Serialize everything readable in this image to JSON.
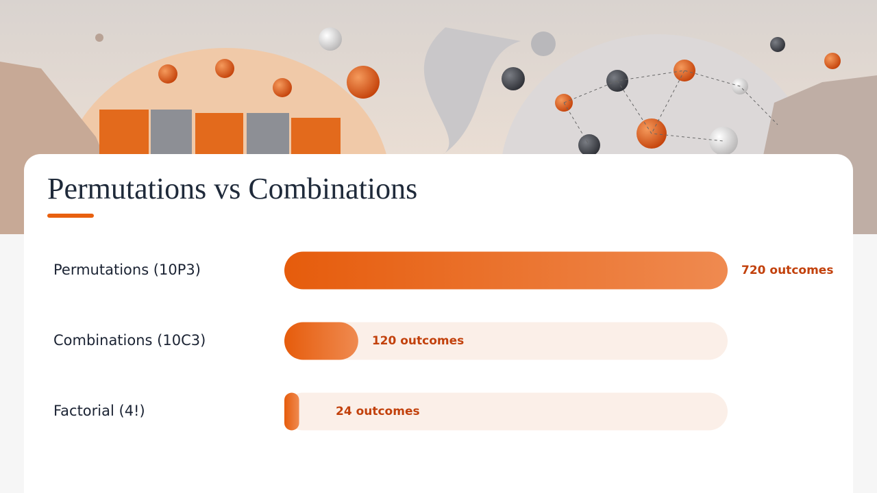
{
  "chart_data": {
    "type": "bar",
    "orientation": "horizontal",
    "title": "Permutations vs Combinations",
    "categories": [
      "Permutations (10P3)",
      "Combinations (10C3)",
      "Factorial (4!)"
    ],
    "values": [
      720,
      120,
      24
    ],
    "value_labels": [
      "720 outcomes",
      "120 outcomes",
      "24 outcomes"
    ],
    "xlim": [
      0,
      720
    ],
    "color": "#e8600f"
  }
}
